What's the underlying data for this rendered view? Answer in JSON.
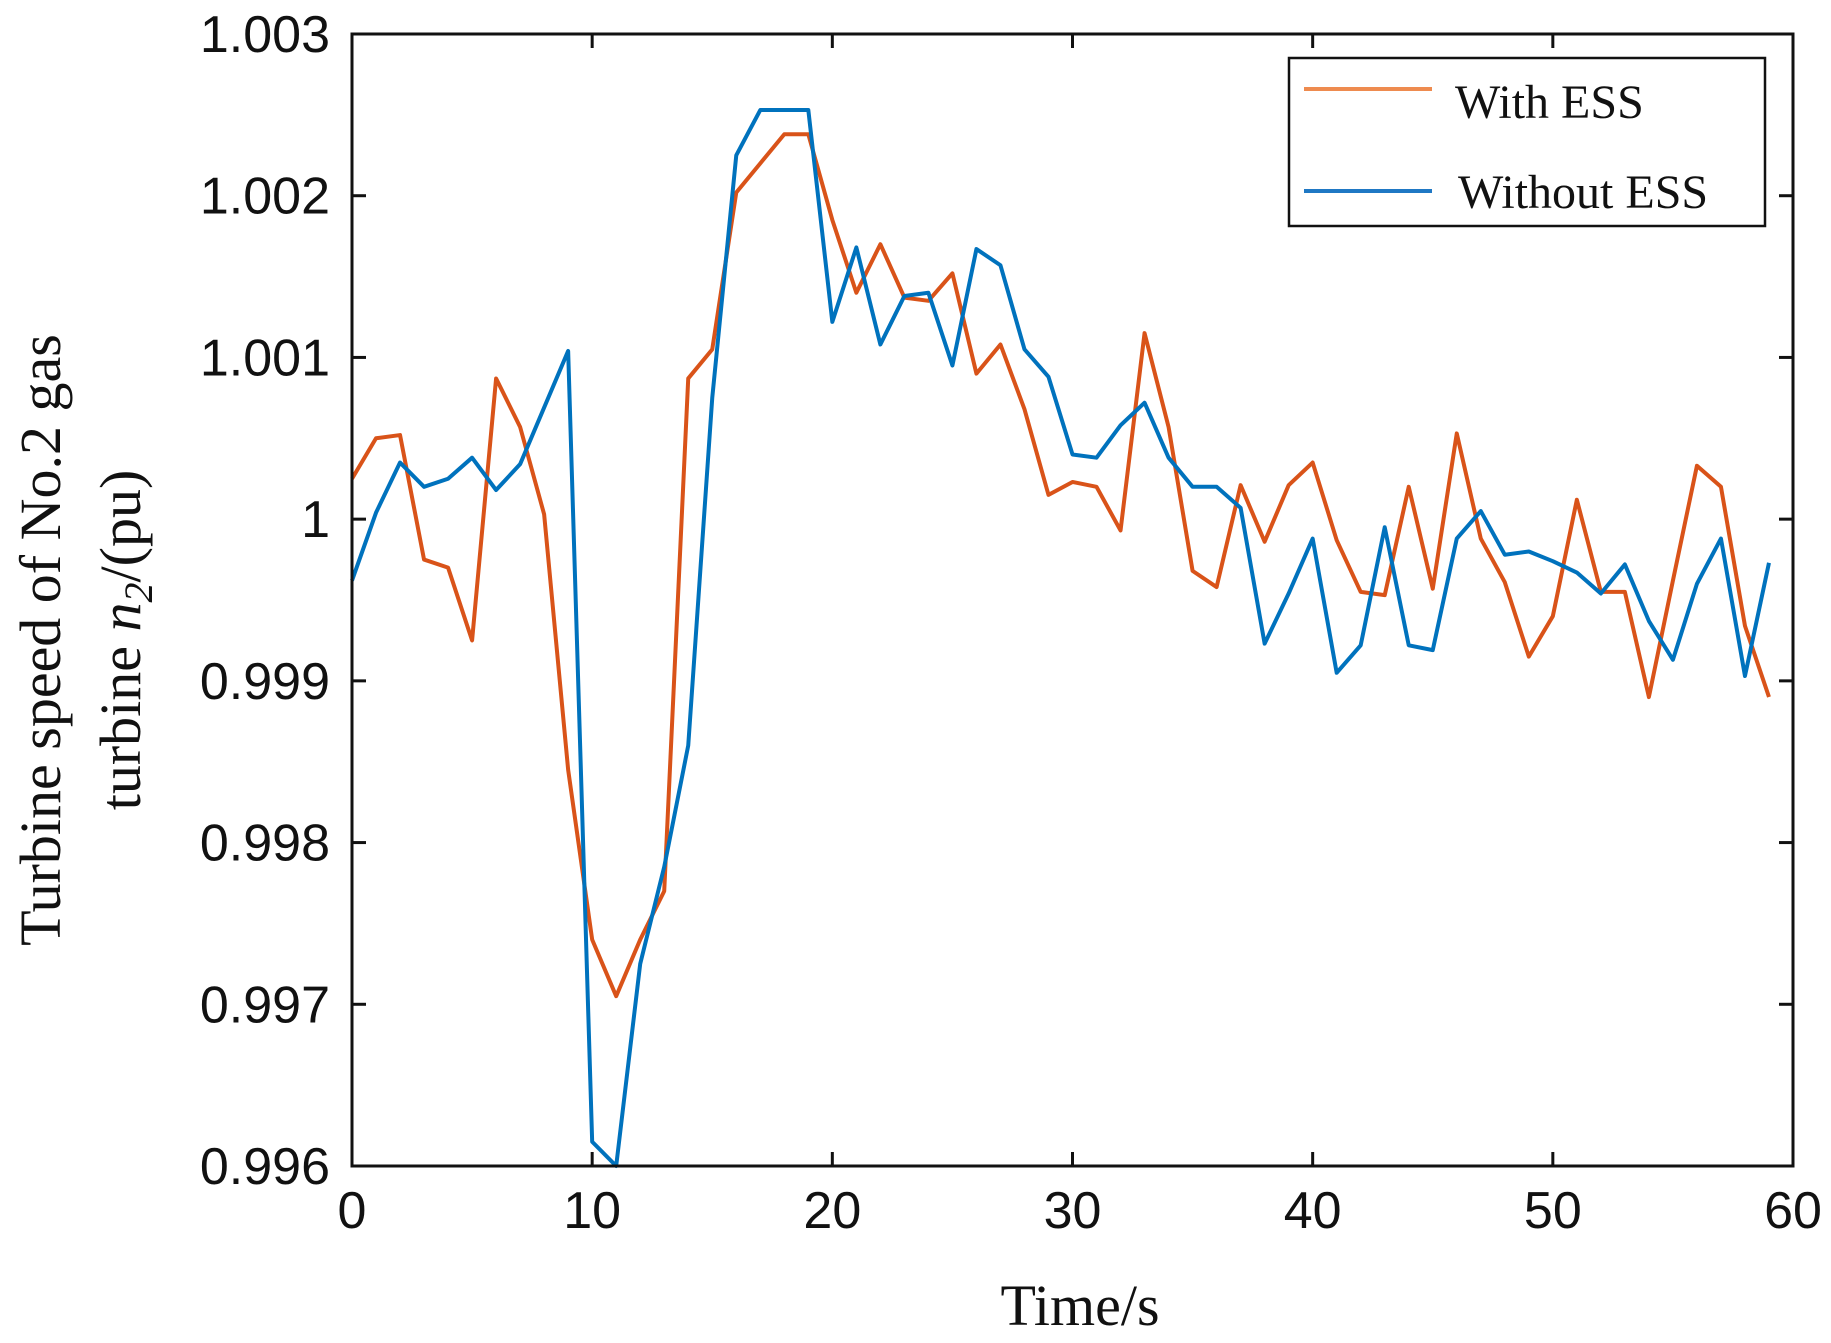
{
  "chart_data": {
    "type": "line",
    "xlabel": "Time/s",
    "ylabel_line1": "Turbine speed of No.2 gas",
    "ylabel_line2_prefix": "turbine ",
    "ylabel_var": "n",
    "ylabel_sub": "2",
    "ylabel_suffix": "/(pu)",
    "xlim": [
      0,
      60
    ],
    "ylim": [
      0.996,
      1.003
    ],
    "xticks": [
      0,
      10,
      20,
      30,
      40,
      50,
      60
    ],
    "xtick_labels": [
      "0",
      "10",
      "20",
      "30",
      "40",
      "50",
      "60"
    ],
    "yticks": [
      0.996,
      0.997,
      0.998,
      0.999,
      1.0,
      1.001,
      1.002,
      1.003
    ],
    "ytick_labels": [
      "0.996",
      "0.997",
      "0.998",
      "0.999",
      "1",
      "1.001",
      "1.002",
      "1.003"
    ],
    "grid": false,
    "legend_position": "top-right",
    "x": [
      0,
      1,
      2,
      3,
      4,
      5,
      6,
      7,
      8,
      9,
      10,
      11,
      12,
      13,
      14,
      15,
      16,
      17,
      18,
      19,
      20,
      21,
      22,
      23,
      24,
      25,
      26,
      27,
      28,
      29,
      30,
      31,
      32,
      33,
      34,
      35,
      36,
      37,
      38,
      39,
      40,
      41,
      42,
      43,
      44,
      45,
      46,
      47,
      48,
      49,
      50,
      51,
      52,
      53,
      54,
      55,
      56,
      57,
      58,
      59
    ],
    "series": [
      {
        "name": "With ESS",
        "color": "#D95319",
        "legend_color": "#EE8B4F",
        "values": [
          1.00025,
          1.0005,
          1.00052,
          0.99975,
          0.9997,
          0.99925,
          1.00087,
          1.00057,
          1.00003,
          0.99845,
          0.9974,
          0.99705,
          0.9974,
          0.9977,
          1.00087,
          1.00105,
          1.00202,
          1.0022,
          1.00238,
          1.00238,
          1.00185,
          1.0014,
          1.0017,
          1.00137,
          1.00135,
          1.00152,
          1.0009,
          1.00108,
          1.00068,
          1.00015,
          1.00023,
          1.0002,
          0.99993,
          1.00115,
          1.00057,
          0.99968,
          0.99958,
          1.00021,
          0.99986,
          1.00021,
          1.00035,
          0.99987,
          0.99955,
          0.99953,
          1.0002,
          0.99957,
          1.00053,
          0.99988,
          0.99961,
          0.99915,
          0.9994,
          1.00012,
          0.99955,
          0.99955,
          0.9989,
          0.99962,
          1.00033,
          1.0002,
          0.99934,
          0.9989
        ]
      },
      {
        "name": "Without ESS",
        "color": "#0072BD",
        "legend_color": "#1F78C4",
        "values": [
          0.99962,
          1.00004,
          1.00035,
          1.0002,
          1.00025,
          1.00038,
          1.00018,
          1.00034,
          1.00069,
          1.00104,
          0.99615,
          0.996,
          0.99725,
          0.99785,
          0.9986,
          1.00075,
          1.00225,
          1.00253,
          1.00253,
          1.00253,
          1.00122,
          1.00168,
          1.00108,
          1.00138,
          1.0014,
          1.00095,
          1.00167,
          1.00157,
          1.00105,
          1.00088,
          1.0004,
          1.00038,
          1.00058,
          1.00072,
          1.00038,
          1.0002,
          1.0002,
          1.00007,
          0.99923,
          0.99954,
          0.99988,
          0.99905,
          0.99922,
          0.99995,
          0.99922,
          0.99919,
          0.99988,
          1.00005,
          0.99978,
          0.9998,
          0.99974,
          0.99967,
          0.99954,
          0.99972,
          0.99937,
          0.99913,
          0.9996,
          0.99988,
          0.99903,
          0.99973
        ]
      }
    ]
  }
}
